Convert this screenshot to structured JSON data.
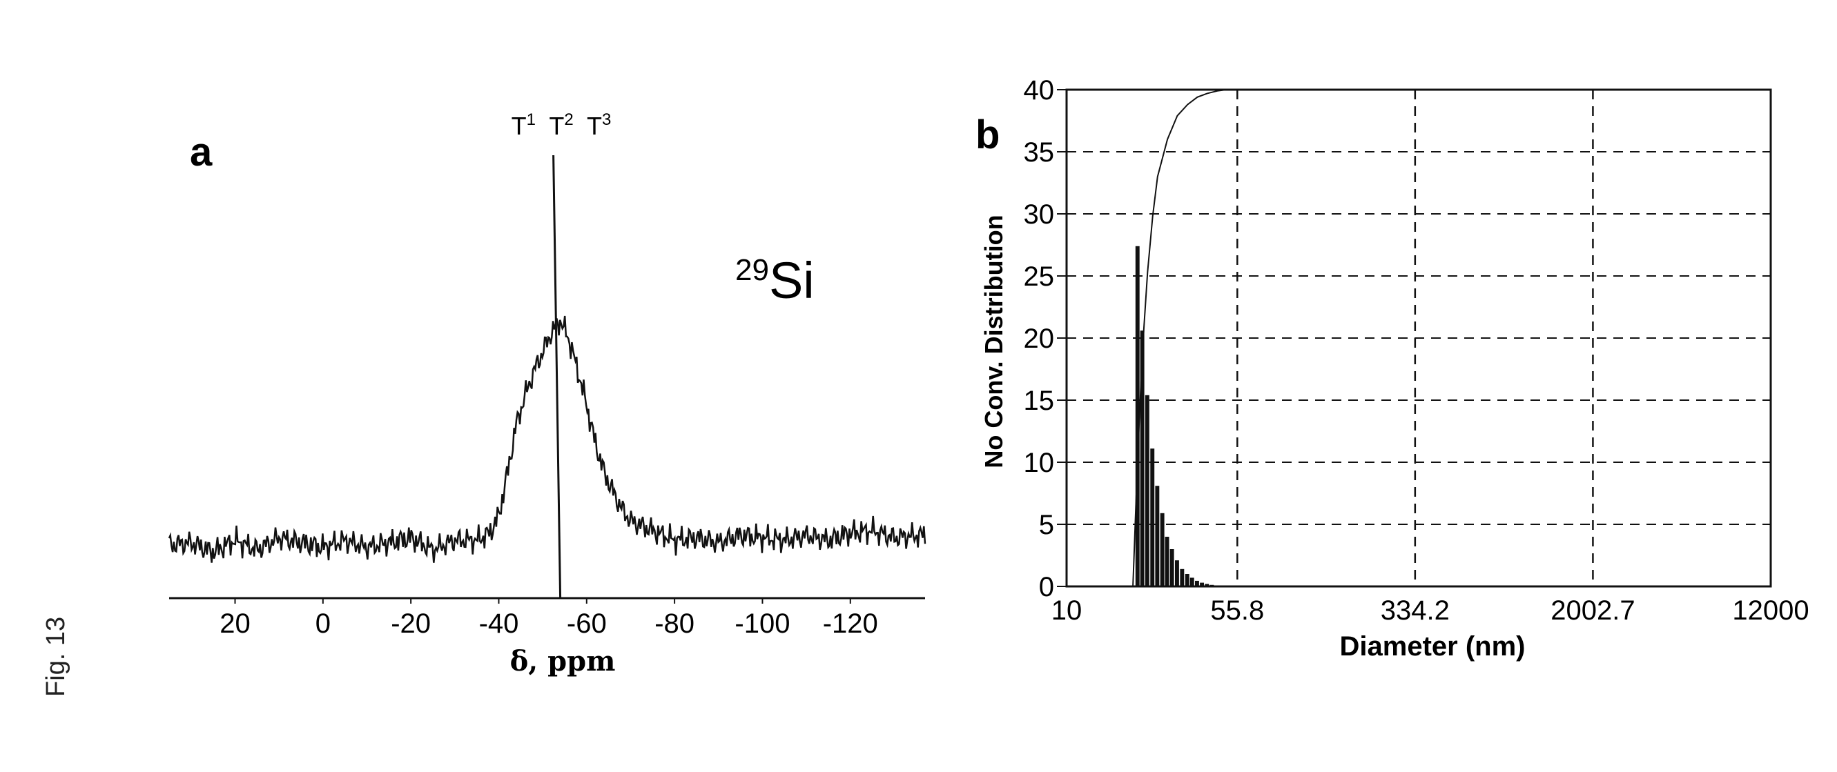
{
  "figure": {
    "caption": "Fig. 13"
  },
  "chart_data": [
    {
      "panel": "a",
      "type": "line",
      "title": "",
      "xlabel": "δ, ppm",
      "ylabel": "",
      "x_reversed": true,
      "xlim": [
        35,
        -137
      ],
      "x_ticks": [
        20,
        0,
        -20,
        -40,
        -60,
        -80,
        -100,
        -120
      ],
      "y_axis_visible": false,
      "grid": false,
      "annotations": {
        "nucleus_prefix": "29",
        "nucleus_symbol": "Si",
        "peak_labels": [
          {
            "base": "T",
            "sup": "1"
          },
          {
            "base": "T",
            "sup": "2"
          },
          {
            "base": "T",
            "sup": "3"
          }
        ],
        "marker_line_x": -54
      },
      "series": [
        {
          "x": [
            35,
            30,
            25,
            20,
            15,
            10,
            5,
            0,
            -5,
            -10,
            -15,
            -20,
            -25,
            -30,
            -35,
            -38,
            -40,
            -42,
            -44,
            -46,
            -48,
            -50,
            -52,
            -54,
            -56,
            -58,
            -60,
            -62,
            -64,
            -66,
            -68,
            -70,
            -75,
            -80,
            -85,
            -90,
            -95,
            -100,
            -105,
            -110,
            -115,
            -120,
            -125,
            -130,
            -135
          ],
          "y": [
            0.0,
            0.01,
            -0.03,
            0.02,
            -0.02,
            0.03,
            0.01,
            -0.01,
            0.02,
            -0.01,
            0.01,
            0.03,
            -0.02,
            0.02,
            0.02,
            0.05,
            0.12,
            0.3,
            0.5,
            0.62,
            0.72,
            0.8,
            0.88,
            0.93,
            0.85,
            0.72,
            0.58,
            0.42,
            0.3,
            0.22,
            0.15,
            0.1,
            0.06,
            0.02,
            0.03,
            0.01,
            0.04,
            0.03,
            0.02,
            0.04,
            0.02,
            0.05,
            0.06,
            0.03,
            0.04
          ]
        }
      ]
    },
    {
      "panel": "b",
      "type": "bar",
      "title": "",
      "xlabel": "Diameter (nm)",
      "ylabel": "No Conv. Distribution",
      "x_scale": "log",
      "xlim": [
        10,
        12000
      ],
      "x_ticks": [
        "10",
        "55.8",
        "334.2",
        "2002.7",
        "12000"
      ],
      "ylim": [
        0,
        40
      ],
      "y_ticks": [
        0,
        5,
        10,
        15,
        20,
        25,
        30,
        35,
        40
      ],
      "grid": true,
      "bars": {
        "x": [
          20.5,
          21.5,
          22.6,
          23.8,
          25.0,
          26.3,
          27.6,
          29.0,
          30.5,
          32.1,
          33.8,
          35.5,
          37.3,
          39.2,
          41.2,
          43.3,
          45.6,
          48.0
        ],
        "values": [
          27.4,
          20.6,
          15.4,
          11.1,
          8.1,
          5.9,
          4.0,
          3.0,
          2.1,
          1.4,
          1.0,
          0.7,
          0.45,
          0.3,
          0.2,
          0.12,
          0.07,
          0.03
        ]
      },
      "cumulative_line": {
        "x": [
          19.5,
          20.5,
          21.5,
          22.6,
          23.8,
          25.0,
          27.6,
          30.5,
          33.8,
          37.3,
          41.2,
          45.6,
          50.0,
          55.8,
          12000
        ],
        "values": [
          0,
          10.9,
          19.2,
          25.3,
          29.8,
          33.0,
          36.0,
          37.9,
          38.8,
          39.4,
          39.7,
          39.9,
          40.0,
          40.0,
          40.0
        ]
      }
    }
  ]
}
